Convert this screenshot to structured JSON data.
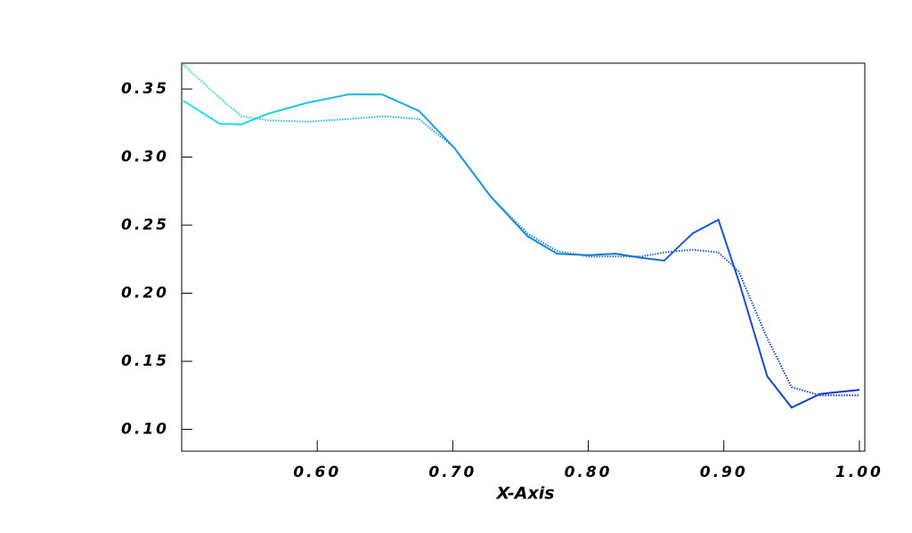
{
  "chart_data": {
    "type": "line",
    "x_label": "X-Axis",
    "x": [
      0.501,
      0.528,
      0.544,
      0.564,
      0.593,
      0.623,
      0.636,
      0.648,
      0.675,
      0.701,
      0.728,
      0.755,
      0.777,
      0.8,
      0.82,
      0.839,
      0.856,
      0.877,
      0.896,
      0.911,
      0.932,
      0.95,
      0.971,
      1.0
    ],
    "series": [
      {
        "style": "solid",
        "values": [
          0.3415,
          0.3245,
          0.324,
          0.332,
          0.34,
          0.346,
          0.346,
          0.346,
          0.334,
          0.307,
          0.271,
          0.242,
          0.229,
          0.228,
          0.229,
          0.226,
          0.224,
          0.244,
          0.254,
          0.209,
          0.139,
          0.116,
          0.126,
          0.129
        ]
      },
      {
        "style": "dotted",
        "values": [
          0.368,
          0.3435,
          0.33,
          0.327,
          0.326,
          0.328,
          0.329,
          0.33,
          0.328,
          0.307,
          0.271,
          0.244,
          0.231,
          0.227,
          0.227,
          0.227,
          0.23,
          0.232,
          0.23,
          0.216,
          0.167,
          0.131,
          0.125,
          0.125
        ]
      }
    ],
    "colors": [
      "#22e6ea",
      "#1030d0"
    ],
    "xlim": [
      0.5,
      1.004
    ],
    "ylim": [
      0.084,
      0.369
    ],
    "xticks": [
      {
        "value": 0.6,
        "label": "0.60"
      },
      {
        "value": 0.7,
        "label": "0.70"
      },
      {
        "value": 0.8,
        "label": "0.80"
      },
      {
        "value": 0.9,
        "label": "0.90"
      },
      {
        "value": 1.0,
        "label": "1.00"
      }
    ],
    "yticks": [
      {
        "value": 0.1,
        "label": "0.10"
      },
      0.15,
      {
        "value": 0.2,
        "label": "0.20"
      },
      0.25,
      {
        "value": 0.3,
        "label": "0.30"
      },
      0.35
    ]
  }
}
